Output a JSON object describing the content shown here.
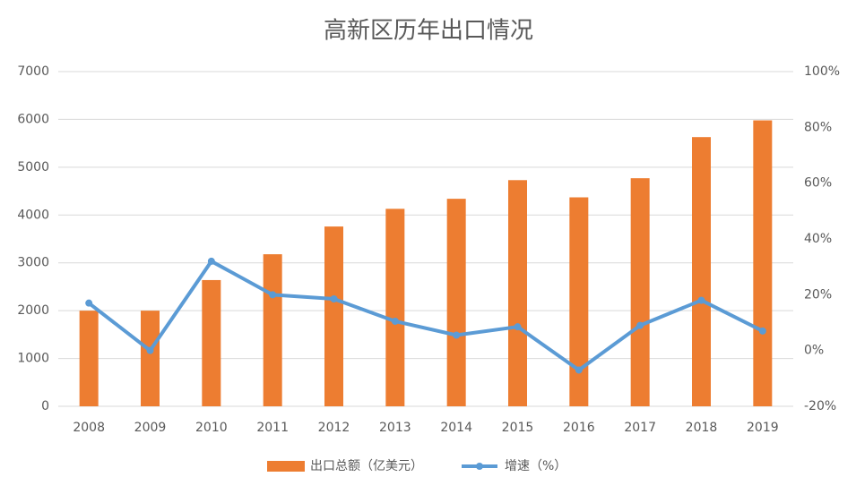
{
  "chart_data": {
    "type": "bar",
    "title": "高新区历年出口情况",
    "categories": [
      "2008",
      "2009",
      "2010",
      "2011",
      "2012",
      "2013",
      "2014",
      "2015",
      "2016",
      "2017",
      "2018",
      "2019"
    ],
    "series": [
      {
        "name": "出口总额（亿美元）",
        "type": "bar",
        "color": "#ed7d31",
        "values": [
          2000,
          2000,
          2640,
          3180,
          3760,
          4130,
          4340,
          4730,
          4370,
          4770,
          5630,
          5980
        ]
      },
      {
        "name": "增速（%）",
        "type": "line",
        "axis": "y2",
        "color": "#5b9bd5",
        "values": [
          17,
          0,
          32,
          20,
          18.5,
          10.5,
          5.5,
          8.5,
          -7,
          9,
          18,
          7
        ]
      }
    ],
    "ylim": [
      0,
      7000
    ],
    "yticks": [
      0,
      1000,
      2000,
      3000,
      4000,
      5000,
      6000,
      7000
    ],
    "y2lim": [
      -20,
      100
    ],
    "y2ticks": [
      {
        "value": -20,
        "label": "-20%"
      },
      {
        "value": 0,
        "label": "0%"
      },
      {
        "value": 20,
        "label": "20%"
      },
      {
        "value": 40,
        "label": "40%"
      },
      {
        "value": 60,
        "label": "60%"
      },
      {
        "value": 80,
        "label": "80%"
      },
      {
        "value": 100,
        "label": "100%"
      }
    ],
    "grid": true,
    "legend": "bottom"
  }
}
